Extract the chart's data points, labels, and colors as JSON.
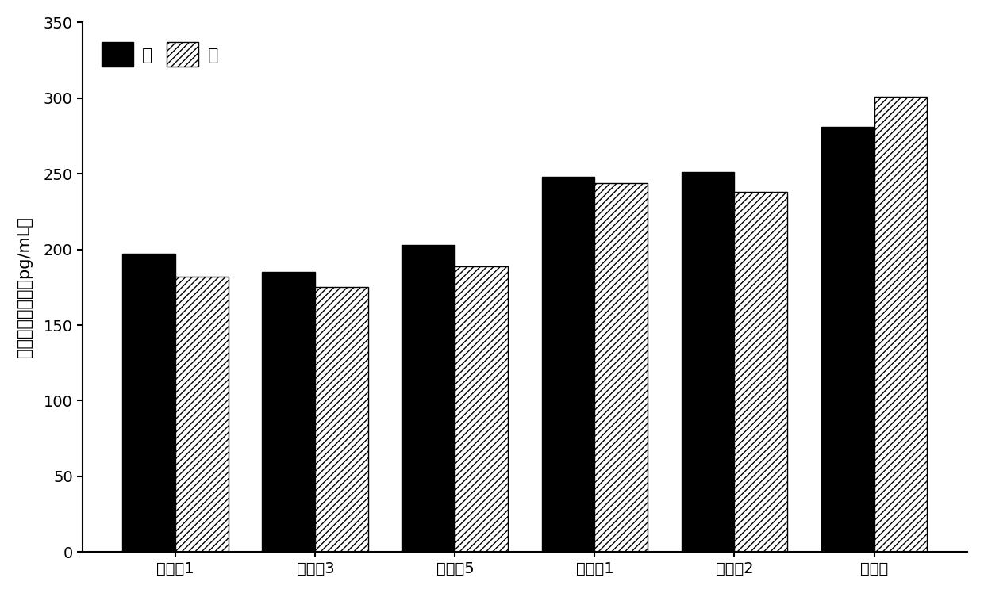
{
  "categories": [
    "实施例1",
    "实施例3",
    "实施例5",
    "对比例1",
    "对比例2",
    "空白组"
  ],
  "male_values": [
    197,
    185,
    203,
    248,
    251,
    281
  ],
  "female_values": [
    182,
    175,
    189,
    244,
    238,
    301
  ],
  "ylabel": "血清膜多肽浓度（pg/mL）",
  "ylim": [
    0,
    350
  ],
  "yticks": [
    0,
    50,
    100,
    150,
    200,
    250,
    300,
    350
  ],
  "legend_labels": [
    "雄",
    "雌"
  ],
  "bar_width": 0.38,
  "male_color": "#000000",
  "female_hatch": "////",
  "female_facecolor": "#ffffff",
  "female_edgecolor": "#000000",
  "background_color": "#ffffff",
  "label_fontsize": 15,
  "tick_fontsize": 14,
  "legend_fontsize": 16
}
